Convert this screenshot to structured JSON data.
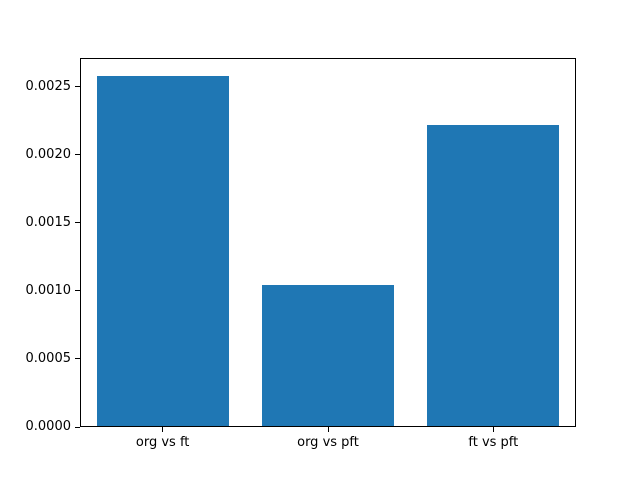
{
  "chart_data": {
    "type": "bar",
    "categories": [
      "org vs ft",
      "org vs pft",
      "ft vs pft"
    ],
    "values": [
      0.00258,
      0.00104,
      0.00222
    ],
    "title": "",
    "xlabel": "",
    "ylabel": "",
    "ylim": [
      0,
      0.00271
    ],
    "yticks": [
      0.0,
      0.0005,
      0.001,
      0.0015,
      0.002,
      0.0025
    ],
    "ytick_labels": [
      "0.0000",
      "0.0005",
      "0.0010",
      "0.0015",
      "0.0020",
      "0.0025"
    ],
    "bar_color": "#1f77b4",
    "bar_width_fraction": 0.8,
    "grid": false,
    "legend_position": "none"
  },
  "colors": {
    "bar": "#1f77b4",
    "axis": "#000000",
    "background": "#ffffff"
  }
}
